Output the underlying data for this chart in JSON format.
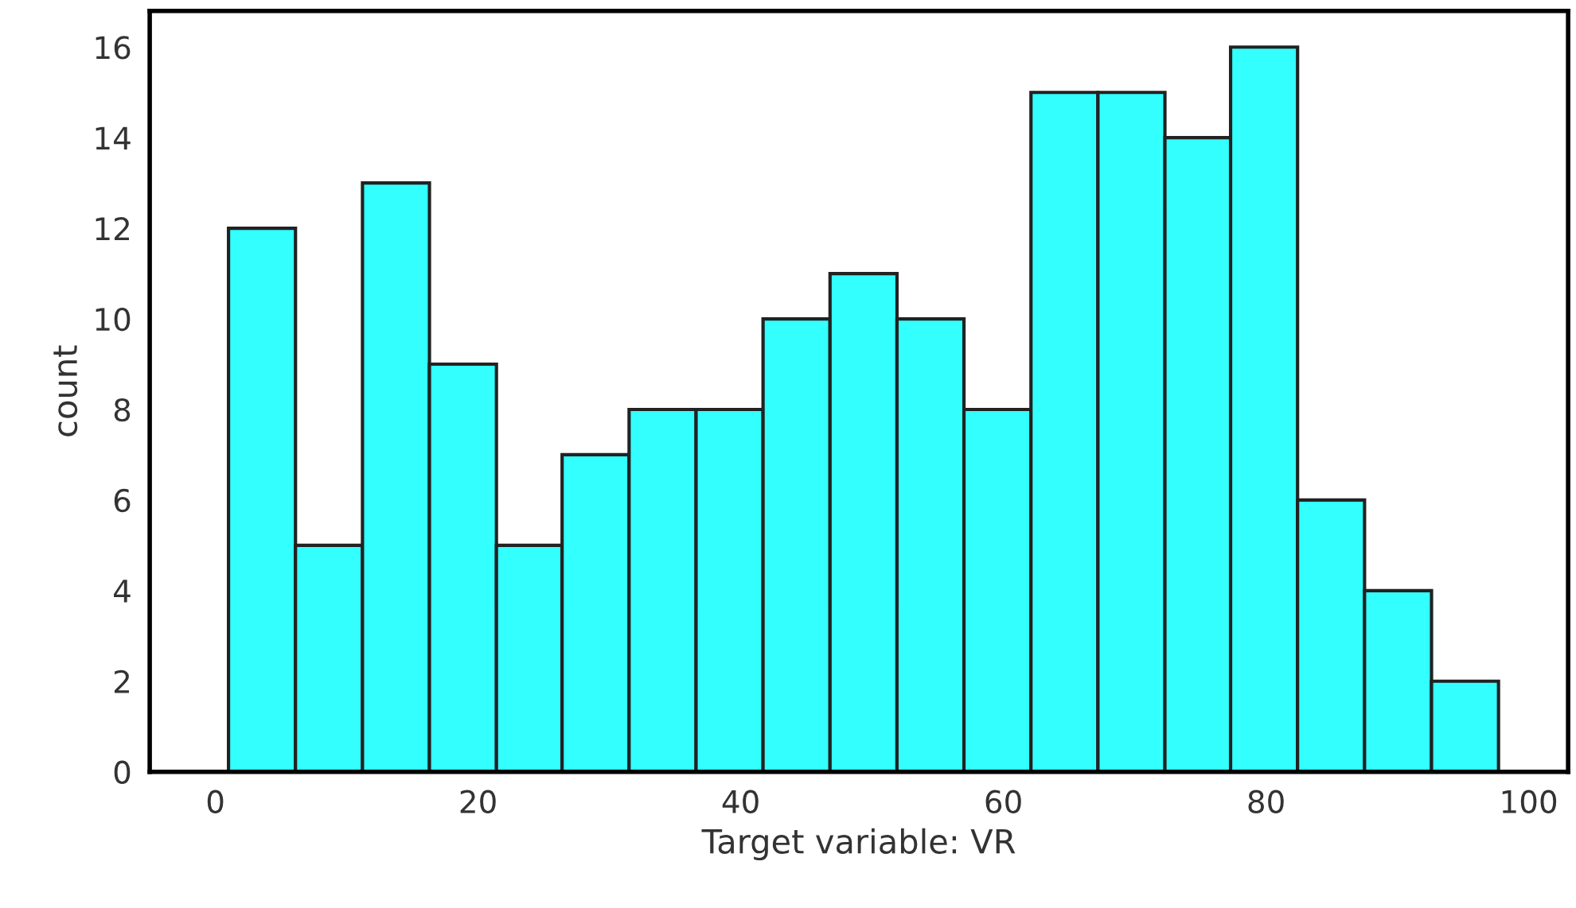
{
  "chart_data": {
    "type": "histogram",
    "xlabel": "Target variable: VR",
    "ylabel": "count",
    "bins": [
      1.0,
      6.1,
      11.2,
      16.3,
      21.4,
      26.4,
      31.5,
      36.6,
      41.7,
      46.8,
      51.9,
      57.0,
      62.1,
      67.2,
      72.3,
      77.3,
      82.4,
      87.5,
      92.6,
      97.7
    ],
    "values": [
      12,
      5,
      13,
      9,
      5,
      7,
      8,
      8,
      10,
      11,
      10,
      8,
      15,
      15,
      14,
      16,
      6,
      4,
      2
    ],
    "color": "#33ffff",
    "xlim": [
      -5,
      103
    ],
    "xticks": [
      0,
      20,
      40,
      60,
      80,
      100
    ],
    "ylim": [
      0,
      16.8
    ],
    "yticks": [
      0,
      2,
      4,
      6,
      8,
      10,
      12,
      14,
      16
    ],
    "grid": false,
    "legend": false
  }
}
